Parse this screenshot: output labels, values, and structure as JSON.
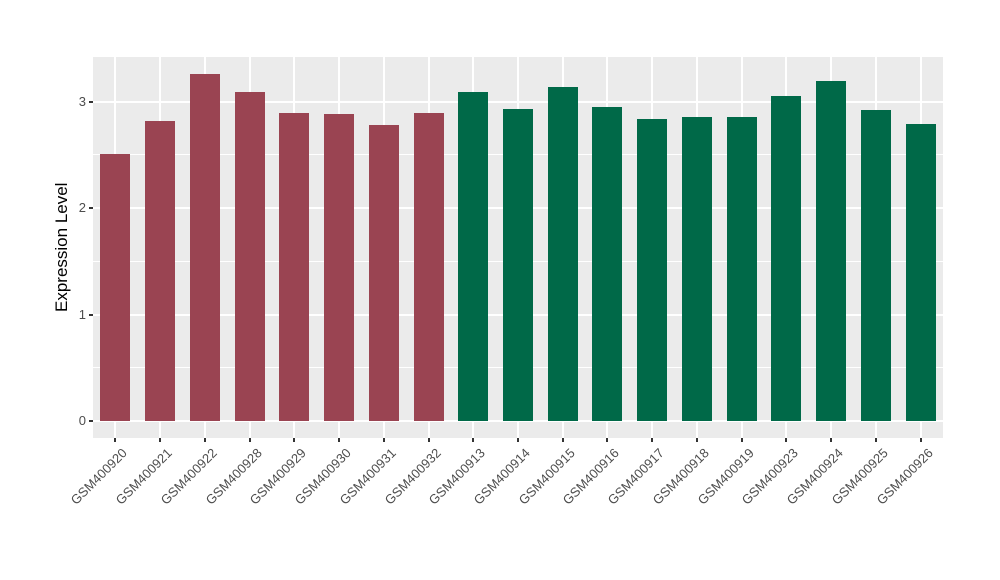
{
  "chart_data": {
    "type": "bar",
    "title": "",
    "xlabel": "",
    "ylabel": "Expression Level",
    "categories": [
      "GSM400920",
      "GSM400921",
      "GSM400922",
      "GSM400928",
      "GSM400929",
      "GSM400930",
      "GSM400931",
      "GSM400932",
      "GSM400913",
      "GSM400914",
      "GSM400915",
      "GSM400916",
      "GSM400917",
      "GSM400918",
      "GSM400919",
      "GSM400923",
      "GSM400924",
      "GSM400925",
      "GSM400926"
    ],
    "values": [
      2.51,
      2.82,
      3.26,
      3.09,
      2.89,
      2.88,
      2.78,
      2.89,
      3.09,
      2.93,
      3.14,
      2.95,
      2.84,
      2.86,
      2.86,
      3.05,
      3.19,
      2.92,
      2.79
    ],
    "group_of_bar": [
      "maroon",
      "maroon",
      "maroon",
      "maroon",
      "maroon",
      "maroon",
      "maroon",
      "maroon",
      "green",
      "green",
      "green",
      "green",
      "green",
      "green",
      "green",
      "green",
      "green",
      "green",
      "green"
    ],
    "group_colors": {
      "maroon": "#9A4452",
      "green": "#006948"
    },
    "ylim": [
      -0.16,
      3.42
    ],
    "yticks": [
      0,
      1,
      2,
      3
    ],
    "ytick_labels": [
      "0",
      "1",
      "2",
      "3"
    ],
    "minor_yticks": [
      0.5,
      1.5,
      2.5
    ],
    "grid": "on",
    "legend": "none",
    "style": {
      "panel_background": "#EBEBEB",
      "grid_color": "#FFFFFF",
      "axis_text_color": "#4D4D4D",
      "axis_title_color": "#000000",
      "tick_mark_color": "#333333",
      "figure_background": "#FFFFFF"
    }
  }
}
